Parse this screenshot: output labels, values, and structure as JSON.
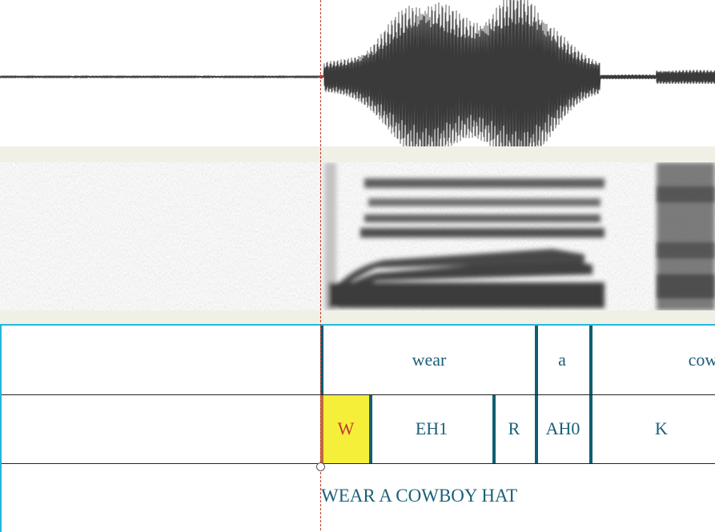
{
  "waveform": {
    "icon": "audio-waveform"
  },
  "spectrogram": {
    "icon": "spectrogram"
  },
  "tiers": {
    "words": [
      {
        "label": "wear"
      },
      {
        "label": "a"
      },
      {
        "label": "cow"
      }
    ],
    "phones": [
      {
        "label": "W",
        "selected": true
      },
      {
        "label": "EH1"
      },
      {
        "label": "R"
      },
      {
        "label": "AH0"
      },
      {
        "label": "K"
      }
    ],
    "transcript": "WEAR A COWBOY HAT"
  },
  "colors": {
    "accent": "#22b8d8",
    "boundary": "#0f5f72",
    "label": "#1a5f78",
    "selected_fill": "#f6ef3a",
    "selected_text": "#c0392b",
    "cursor": "#c0392b",
    "waveform": "#3a3a3a"
  }
}
